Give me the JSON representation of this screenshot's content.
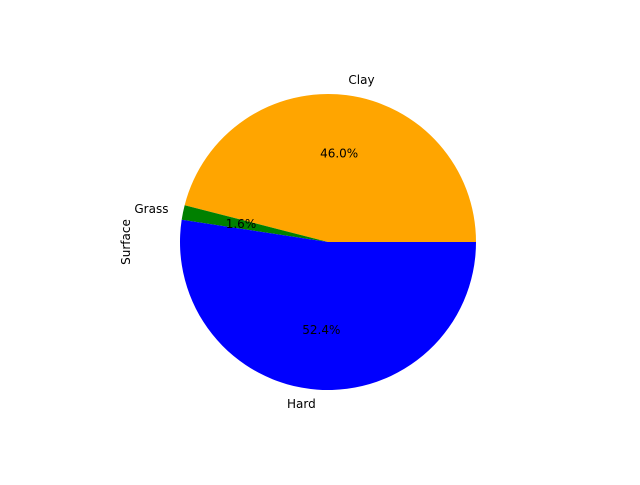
{
  "chart_data": {
    "type": "pie",
    "title": "",
    "xlabel": "",
    "ylabel": "Surface",
    "categories": [
      "Clay",
      "Grass",
      "Hard"
    ],
    "values": [
      46.0,
      1.6,
      52.4
    ],
    "value_labels": [
      "46.0%",
      "1.6%",
      "52.4%"
    ],
    "colors": [
      "#ffa500",
      "#008000",
      "#0000ff"
    ],
    "start_angle_deg": 0,
    "direction": "counterclockwise",
    "legend": "none"
  }
}
